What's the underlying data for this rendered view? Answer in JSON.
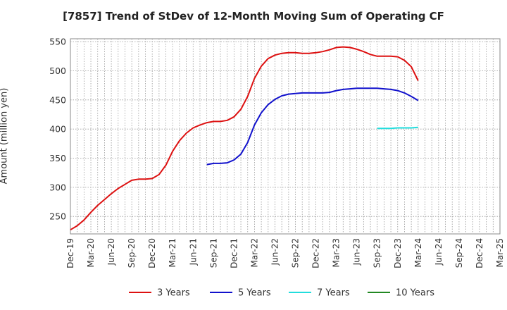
{
  "chart_data": {
    "type": "line",
    "title": "[7857]  Trend of StDev of 12-Month Moving Sum of Operating CF",
    "ylabel": "Amount (million yen)",
    "xlabel": "",
    "ylim": [
      220,
      555
    ],
    "yticks": [
      250,
      300,
      350,
      400,
      450,
      500,
      550
    ],
    "x_tick_labels": [
      "Dec-19",
      "Mar-20",
      "Jun-20",
      "Sep-20",
      "Dec-20",
      "Mar-21",
      "Jun-21",
      "Sep-21",
      "Dec-21",
      "Mar-22",
      "Jun-22",
      "Sep-22",
      "Dec-22",
      "Mar-23",
      "Jun-23",
      "Sep-23",
      "Dec-23",
      "Mar-24",
      "Jun-24",
      "Sep-24",
      "Dec-24",
      "Mar-25"
    ],
    "x_start": "Dec-19",
    "grid": true,
    "legend_position": "bottom",
    "series": [
      {
        "name": "3 Years",
        "color": "#dd1111",
        "x": [
          "Dec-19",
          "Jan-20",
          "Feb-20",
          "Mar-20",
          "Apr-20",
          "May-20",
          "Jun-20",
          "Jul-20",
          "Aug-20",
          "Sep-20",
          "Oct-20",
          "Nov-20",
          "Dec-20",
          "Jan-21",
          "Feb-21",
          "Mar-21",
          "Apr-21",
          "May-21",
          "Jun-21",
          "Jul-21",
          "Aug-21",
          "Sep-21",
          "Oct-21",
          "Nov-21",
          "Dec-21",
          "Jan-22",
          "Feb-22",
          "Mar-22",
          "Apr-22",
          "May-22",
          "Jun-22",
          "Jul-22",
          "Aug-22",
          "Sep-22",
          "Oct-22",
          "Nov-22",
          "Dec-22",
          "Jan-23",
          "Feb-23",
          "Mar-23",
          "Apr-23",
          "May-23",
          "Jun-23",
          "Jul-23",
          "Aug-23",
          "Sep-23",
          "Oct-23",
          "Nov-23",
          "Dec-23",
          "Jan-24",
          "Feb-24",
          "Mar-24"
        ],
        "values": [
          227,
          234,
          244,
          257,
          269,
          279,
          289,
          298,
          305,
          312,
          314,
          314,
          315,
          322,
          338,
          362,
          380,
          393,
          402,
          407,
          411,
          413,
          413,
          415,
          421,
          434,
          456,
          487,
          508,
          521,
          527,
          530,
          531,
          531,
          530,
          530,
          531,
          533,
          536,
          540,
          541,
          540,
          537,
          533,
          528,
          525,
          525,
          525,
          524,
          518,
          507,
          483
        ]
      },
      {
        "name": "5 Years",
        "color": "#1111cc",
        "x": [
          "Aug-21",
          "Sep-21",
          "Oct-21",
          "Nov-21",
          "Dec-21",
          "Jan-22",
          "Feb-22",
          "Mar-22",
          "Apr-22",
          "May-22",
          "Jun-22",
          "Jul-22",
          "Aug-22",
          "Sep-22",
          "Oct-22",
          "Nov-22",
          "Dec-22",
          "Jan-23",
          "Feb-23",
          "Mar-23",
          "Apr-23",
          "May-23",
          "Jun-23",
          "Jul-23",
          "Aug-23",
          "Sep-23",
          "Oct-23",
          "Nov-23",
          "Dec-23",
          "Jan-24",
          "Feb-24",
          "Mar-24"
        ],
        "values": [
          339,
          341,
          341,
          342,
          347,
          357,
          377,
          407,
          428,
          442,
          451,
          457,
          460,
          461,
          462,
          462,
          462,
          462,
          463,
          466,
          468,
          469,
          470,
          470,
          470,
          470,
          469,
          468,
          466,
          462,
          456,
          449
        ]
      },
      {
        "name": "7 Years",
        "color": "#22dddd",
        "x": [
          "Sep-23",
          "Oct-23",
          "Nov-23",
          "Dec-23",
          "Jan-24",
          "Feb-24",
          "Mar-24"
        ],
        "values": [
          401,
          401,
          401,
          402,
          402,
          402,
          403
        ]
      },
      {
        "name": "10 Years",
        "color": "#228822",
        "x": [],
        "values": []
      }
    ]
  }
}
